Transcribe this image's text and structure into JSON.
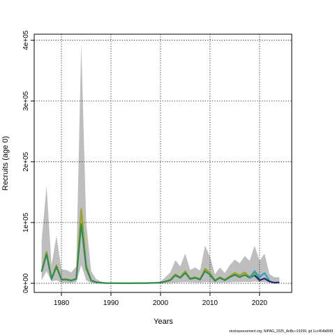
{
  "chart_data": {
    "type": "area",
    "title": "",
    "xlabel": "Years",
    "ylabel": "Recruits (age 0)",
    "xlim": [
      1974.5,
      2026.5
    ],
    "ylim": [
      -15000,
      410000
    ],
    "xticks": [
      1980,
      1990,
      2000,
      2010,
      2020
    ],
    "xtick_labels": [
      "1980",
      "1990",
      "2000",
      "2010",
      "2020"
    ],
    "yticks": [
      0,
      100000,
      200000,
      300000,
      400000
    ],
    "ytick_labels": [
      "0e+00",
      "1e+05",
      "2e+05",
      "3e+05",
      "4e+05"
    ],
    "grid": true,
    "grid_style": "dotted",
    "x": [
      1976,
      1977,
      1978,
      1979,
      1980,
      1981,
      1982,
      1983,
      1984,
      1985,
      1986,
      1987,
      1988,
      1989,
      1990,
      1991,
      1992,
      1993,
      1994,
      1995,
      1996,
      1997,
      1998,
      1999,
      2000,
      2001,
      2002,
      2003,
      2004,
      2005,
      2006,
      2007,
      2008,
      2009,
      2010,
      2011,
      2012,
      2013,
      2014,
      2015,
      2016,
      2017,
      2018,
      2019,
      2020,
      2021,
      2022,
      2023,
      2024
    ],
    "series": [
      {
        "name": "",
        "role": "uncertainty band",
        "color": "#bebebe",
        "lower": [
          5000,
          20000,
          3000,
          5000,
          1000,
          1000,
          500,
          2000,
          30000,
          5000,
          500,
          200,
          200,
          100,
          100,
          100,
          100,
          100,
          100,
          100,
          100,
          100,
          100,
          200,
          300,
          500,
          800,
          1000,
          1500,
          2000,
          1500,
          1200,
          1000,
          2000,
          1500,
          1000,
          1000,
          1200,
          1500,
          2000,
          2000,
          2500,
          2000,
          3000,
          2000,
          2000,
          1000,
          500,
          500
        ],
        "upper": [
          70000,
          160000,
          30000,
          78000,
          23000,
          22000,
          18000,
          28000,
          395000,
          100000,
          20000,
          7000,
          3000,
          1500,
          1000,
          800,
          700,
          600,
          700,
          800,
          1000,
          1200,
          1500,
          2000,
          3000,
          10000,
          18000,
          38000,
          28000,
          49000,
          22000,
          26000,
          21000,
          62000,
          44000,
          15000,
          26000,
          17000,
          30000,
          39000,
          33000,
          45000,
          37000,
          62000,
          37000,
          49000,
          15000,
          10000,
          10000
        ]
      },
      {
        "name": "",
        "color": "#9ba41e",
        "values": [
          20000,
          52000,
          8000,
          30000,
          7000,
          7000,
          5000,
          8000,
          122000,
          30000,
          5000,
          2000,
          800,
          400,
          300,
          250,
          200,
          200,
          200,
          250,
          300,
          400,
          500,
          700,
          1000,
          3000,
          6000,
          15000,
          10000,
          20000,
          8000,
          10000,
          7000,
          24000,
          17000,
          5000,
          10000,
          6000,
          12000,
          17000,
          13000,
          18000,
          11000,
          17000,
          8000,
          null,
          null,
          null,
          null
        ]
      },
      {
        "name": "",
        "color": "#2e8b57",
        "values": [
          19000,
          48000,
          7000,
          27000,
          6000,
          6000,
          4500,
          7000,
          98000,
          25000,
          4500,
          1800,
          700,
          350,
          300,
          250,
          200,
          200,
          200,
          250,
          300,
          400,
          500,
          700,
          1000,
          3000,
          5000,
          13000,
          9000,
          17000,
          7000,
          9000,
          6000,
          20000,
          14000,
          4000,
          9000,
          5000,
          10000,
          14000,
          10000,
          14000,
          9000,
          13000,
          7000,
          null,
          null,
          null,
          null
        ]
      },
      {
        "name": "",
        "color": "#2a9fc4",
        "values": [
          null,
          null,
          null,
          null,
          null,
          null,
          null,
          null,
          null,
          null,
          null,
          null,
          null,
          null,
          null,
          null,
          null,
          null,
          null,
          null,
          null,
          null,
          null,
          null,
          null,
          null,
          null,
          null,
          null,
          null,
          null,
          null,
          null,
          null,
          null,
          null,
          null,
          null,
          null,
          null,
          null,
          null,
          9000,
          20000,
          10000,
          17000,
          4000,
          null,
          null
        ]
      },
      {
        "name": "",
        "color": "#1f2a6e",
        "values": [
          null,
          null,
          null,
          null,
          null,
          null,
          null,
          null,
          null,
          null,
          null,
          null,
          null,
          null,
          null,
          null,
          null,
          null,
          null,
          null,
          null,
          null,
          null,
          null,
          null,
          null,
          null,
          null,
          null,
          null,
          null,
          null,
          null,
          null,
          null,
          null,
          null,
          null,
          null,
          null,
          null,
          null,
          null,
          13000,
          5000,
          8000,
          3000,
          1000,
          1500
        ]
      }
    ]
  },
  "footnote": "stockassessment.org, NIPAG_2025_AnBu r19299, git 1cc464b806f"
}
